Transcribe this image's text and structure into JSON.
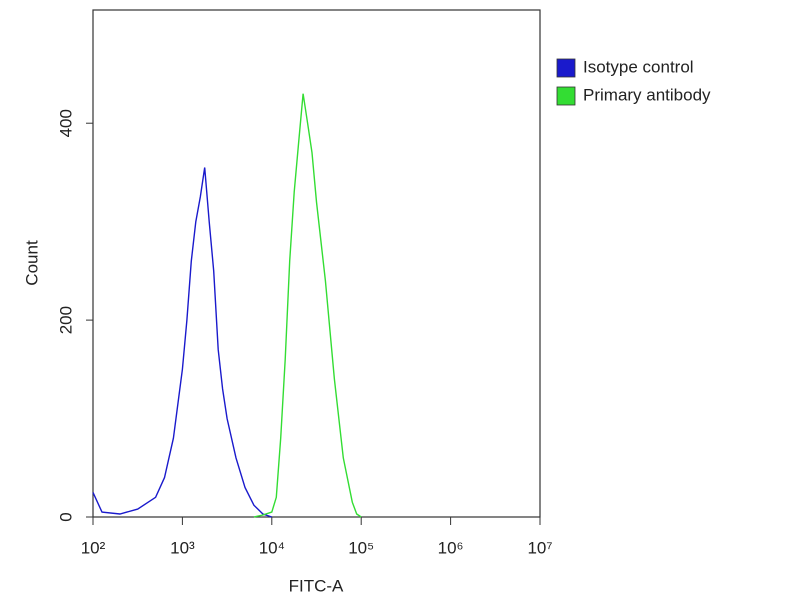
{
  "chart_data": {
    "type": "line",
    "xlabel": "FITC-A",
    "ylabel": "Count",
    "xscale": "log",
    "xlim": [
      100,
      10000000
    ],
    "ylim": [
      0,
      515
    ],
    "xticks": [
      {
        "value": 100,
        "label": "10²"
      },
      {
        "value": 1000,
        "label": "10³"
      },
      {
        "value": 10000,
        "label": "10⁴"
      },
      {
        "value": 100000,
        "label": "10⁵"
      },
      {
        "value": 1000000,
        "label": "10⁶"
      },
      {
        "value": 10000000,
        "label": "10⁷"
      }
    ],
    "yticks": [
      0,
      200,
      400
    ],
    "grid": false,
    "legend": "outside-right",
    "series": [
      {
        "name": "Isotype control",
        "color": "#1a1acc",
        "x": [
          100,
          126,
          200,
          316,
          501,
          631,
          794,
          1000,
          1122,
          1259,
          1413,
          1585,
          1778,
          1995,
          2239,
          2512,
          2818,
          3162,
          3981,
          5012,
          6310,
          7943,
          10000
        ],
        "values": [
          25,
          5,
          3,
          8,
          20,
          40,
          80,
          150,
          200,
          260,
          300,
          325,
          355,
          300,
          250,
          170,
          130,
          100,
          60,
          30,
          12,
          3,
          0
        ]
      },
      {
        "name": "Primary antibody",
        "color": "#33dd33",
        "x": [
          6310,
          7943,
          10000,
          11220,
          12589,
          14125,
          15849,
          17783,
          19953,
          22387,
          25119,
          28184,
          31623,
          39811,
          50119,
          63096,
          79433,
          89125,
          100000
        ],
        "values": [
          0,
          2,
          5,
          20,
          80,
          160,
          260,
          330,
          380,
          430,
          400,
          370,
          320,
          240,
          140,
          60,
          15,
          3,
          0
        ]
      }
    ]
  }
}
